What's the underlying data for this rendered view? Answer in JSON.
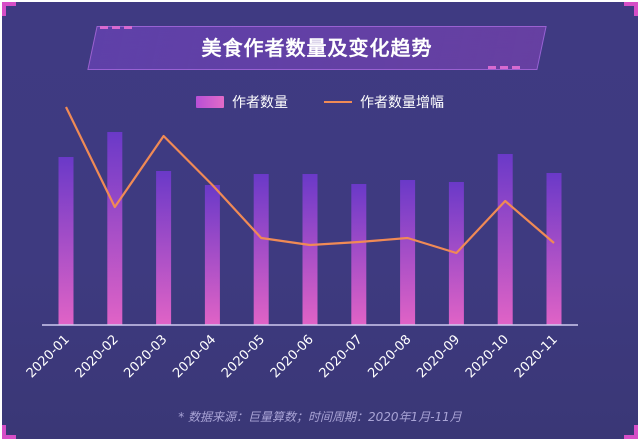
{
  "title": "美食作者数量及变化趋势",
  "legend": {
    "bar_label": "作者数量",
    "line_label": "作者数量增幅"
  },
  "footnote": "* 数据来源：巨量算数；时间周期：2020年1月-11月",
  "colors": {
    "bar_top": "#6a39c8",
    "bar_bottom": "#e063c6",
    "line": "#f08a55",
    "background": "#3f3a82",
    "accent": "#d64ec6"
  },
  "chart_data": {
    "type": "bar",
    "categories": [
      "2020-01",
      "2020-02",
      "2020-03",
      "2020-04",
      "2020-05",
      "2020-06",
      "2020-07",
      "2020-08",
      "2020-09",
      "2020-10",
      "2020-11"
    ],
    "series": [
      {
        "name": "作者数量",
        "type": "bar",
        "values": [
          168,
          193,
          154,
          140,
          151,
          151,
          141,
          145,
          143,
          171,
          152
        ]
      },
      {
        "name": "作者数量增幅",
        "type": "line",
        "values": [
          218,
          118,
          189,
          140,
          87,
          80,
          83,
          87,
          72,
          124,
          82
        ]
      }
    ],
    "ylim": [
      0,
      260
    ],
    "grid": false,
    "legend_position": "top-center"
  }
}
